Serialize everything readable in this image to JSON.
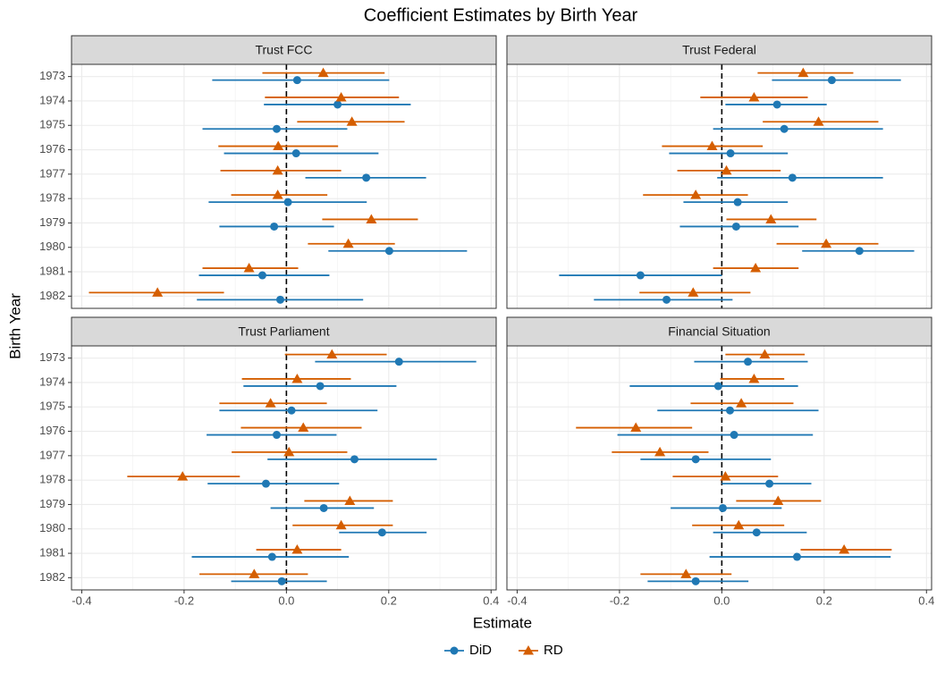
{
  "title": "Coefficient Estimates by Birth Year",
  "x_label": "Estimate",
  "y_label": "Birth Year",
  "legend": "bottom",
  "chart_data": [
    {
      "type": "pointrange",
      "title": "Trust FCC",
      "categories": [
        "1973",
        "1974",
        "1975",
        "1976",
        "1977",
        "1978",
        "1979",
        "1980",
        "1981",
        "1982"
      ],
      "xlim": [
        -0.42,
        0.41
      ],
      "xticks": [
        -0.4,
        -0.2,
        {
          "value": 0,
          "label": "0.0"
        },
        0.2,
        0.4
      ],
      "vline": 0,
      "grid": true,
      "series": [
        {
          "name": "DiD",
          "color": "#1f78b4",
          "marker": "circle",
          "values": [
            0.021,
            0.1,
            -0.019,
            0.019,
            0.156,
            0.003,
            -0.024,
            0.201,
            -0.047,
            -0.012
          ],
          "lower": [
            -0.145,
            -0.044,
            -0.164,
            -0.122,
            0.037,
            -0.152,
            -0.131,
            0.082,
            -0.171,
            -0.175
          ],
          "upper": [
            0.201,
            0.243,
            0.119,
            0.18,
            0.273,
            0.157,
            0.093,
            0.353,
            0.084,
            0.15
          ]
        },
        {
          "name": "RD",
          "color": "#d55e00",
          "marker": "triangle",
          "values": [
            0.072,
            0.107,
            0.128,
            -0.016,
            -0.017,
            -0.017,
            0.166,
            0.121,
            -0.073,
            -0.252
          ],
          "lower": [
            -0.047,
            -0.042,
            0.021,
            -0.133,
            -0.129,
            -0.108,
            0.07,
            0.042,
            -0.164,
            -0.386
          ],
          "upper": [
            0.192,
            0.22,
            0.231,
            0.101,
            0.107,
            0.08,
            0.257,
            0.212,
            0.023,
            -0.122
          ]
        }
      ]
    },
    {
      "type": "pointrange",
      "title": "Trust Federal",
      "categories": [
        "1973",
        "1974",
        "1975",
        "1976",
        "1977",
        "1978",
        "1979",
        "1980",
        "1981",
        "1982"
      ],
      "xlim": [
        -0.42,
        0.41
      ],
      "xticks": [
        -0.4,
        -0.2,
        {
          "value": 0,
          "label": "0.0"
        },
        0.2,
        0.4
      ],
      "vline": 0,
      "grid": true,
      "series": [
        {
          "name": "DiD",
          "color": "#1f78b4",
          "marker": "circle",
          "values": [
            0.215,
            0.108,
            0.122,
            0.017,
            0.138,
            0.031,
            0.028,
            0.269,
            -0.159,
            -0.108
          ],
          "lower": [
            0.098,
            0.007,
            -0.017,
            -0.103,
            -0.009,
            -0.075,
            -0.082,
            0.157,
            -0.318,
            -0.25
          ],
          "upper": [
            0.35,
            0.205,
            0.315,
            0.129,
            0.315,
            0.129,
            0.15,
            0.376,
            0.0,
            0.021
          ]
        },
        {
          "name": "RD",
          "color": "#d55e00",
          "marker": "triangle",
          "values": [
            0.159,
            0.063,
            0.189,
            -0.019,
            0.009,
            -0.051,
            0.096,
            0.204,
            0.066,
            -0.056
          ],
          "lower": [
            0.07,
            -0.042,
            0.08,
            -0.117,
            -0.087,
            -0.154,
            0.009,
            0.107,
            -0.017,
            -0.161
          ],
          "upper": [
            0.257,
            0.168,
            0.306,
            0.08,
            0.115,
            0.051,
            0.185,
            0.306,
            0.15,
            0.056
          ]
        }
      ]
    },
    {
      "type": "pointrange",
      "title": "Trust Parliament",
      "categories": [
        "1973",
        "1974",
        "1975",
        "1976",
        "1977",
        "1978",
        "1979",
        "1980",
        "1981",
        "1982"
      ],
      "xlim": [
        -0.42,
        0.41
      ],
      "xticks": [
        -0.4,
        -0.2,
        {
          "value": 0,
          "label": "0.0"
        },
        0.2,
        0.4
      ],
      "vline": 0,
      "grid": true,
      "series": [
        {
          "name": "DiD",
          "color": "#1f78b4",
          "marker": "circle",
          "values": [
            0.22,
            0.066,
            0.01,
            -0.019,
            0.133,
            -0.04,
            0.073,
            0.187,
            -0.028,
            -0.009
          ],
          "lower": [
            0.056,
            -0.084,
            -0.131,
            -0.156,
            -0.037,
            -0.154,
            -0.031,
            0.103,
            -0.185,
            -0.108
          ],
          "upper": [
            0.371,
            0.215,
            0.178,
            0.098,
            0.294,
            0.103,
            0.171,
            0.274,
            0.122,
            0.079
          ]
        },
        {
          "name": "RD",
          "color": "#d55e00",
          "marker": "triangle",
          "values": [
            0.089,
            0.021,
            -0.031,
            0.033,
            0.005,
            -0.203,
            0.124,
            0.107,
            0.021,
            -0.063
          ],
          "lower": [
            -0.003,
            -0.087,
            -0.131,
            -0.089,
            -0.107,
            -0.311,
            0.035,
            0.012,
            -0.059,
            -0.17
          ],
          "upper": [
            0.196,
            0.126,
            0.079,
            0.147,
            0.119,
            -0.091,
            0.208,
            0.208,
            0.107,
            0.042
          ]
        }
      ]
    },
    {
      "type": "pointrange",
      "title": "Financial Situation",
      "categories": [
        "1973",
        "1974",
        "1975",
        "1976",
        "1977",
        "1978",
        "1979",
        "1980",
        "1981",
        "1982"
      ],
      "xlim": [
        -0.42,
        0.41
      ],
      "xticks": [
        -0.4,
        -0.2,
        {
          "value": 0,
          "label": "0.0"
        },
        0.2,
        0.4
      ],
      "vline": 0,
      "grid": true,
      "series": [
        {
          "name": "DiD",
          "color": "#1f78b4",
          "marker": "circle",
          "values": [
            0.051,
            -0.007,
            0.016,
            0.024,
            -0.051,
            0.093,
            0.002,
            0.068,
            0.147,
            -0.051
          ],
          "lower": [
            -0.054,
            -0.18,
            -0.126,
            -0.204,
            -0.159,
            0.0,
            -0.1,
            -0.017,
            -0.024,
            -0.145
          ],
          "upper": [
            0.168,
            0.149,
            0.189,
            0.178,
            0.096,
            0.175,
            0.117,
            0.166,
            0.33,
            0.052
          ]
        },
        {
          "name": "RD",
          "color": "#d55e00",
          "marker": "triangle",
          "values": [
            0.084,
            0.063,
            0.038,
            -0.168,
            -0.121,
            0.007,
            0.11,
            0.033,
            0.239,
            -0.07
          ],
          "lower": [
            0.007,
            -0.003,
            -0.061,
            -0.285,
            -0.215,
            -0.096,
            0.028,
            -0.058,
            0.154,
            -0.159
          ],
          "upper": [
            0.162,
            0.122,
            0.14,
            -0.058,
            -0.026,
            0.11,
            0.194,
            0.122,
            0.332,
            0.019
          ]
        }
      ]
    }
  ]
}
